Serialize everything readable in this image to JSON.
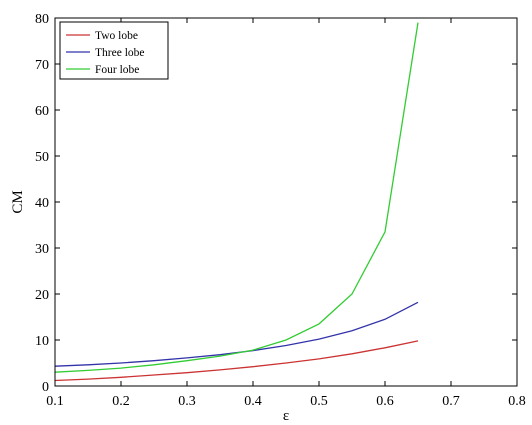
{
  "chart_data": {
    "type": "line",
    "title": "",
    "xlabel": "ε",
    "ylabel": "CM",
    "xlim": [
      0.1,
      0.8
    ],
    "ylim": [
      0,
      80
    ],
    "xticks": [
      "0.1",
      "0.2",
      "0.3",
      "0.4",
      "0.5",
      "0.6",
      "0.7",
      "0.8"
    ],
    "yticks": [
      "0",
      "10",
      "20",
      "30",
      "40",
      "50",
      "60",
      "70",
      "80"
    ],
    "grid": false,
    "legend_position": "top-left",
    "x": [
      0.1,
      0.15,
      0.2,
      0.25,
      0.3,
      0.35,
      0.4,
      0.45,
      0.5,
      0.55,
      0.6,
      0.65
    ],
    "series": [
      {
        "name": "Two lobe",
        "color": "#cc3333",
        "values": [
          1.2,
          1.5,
          1.9,
          2.4,
          2.9,
          3.5,
          4.2,
          5.0,
          5.9,
          7.0,
          8.3,
          9.8
        ]
      },
      {
        "name": "Three lobe",
        "color": "#3333aa",
        "values": [
          4.3,
          4.6,
          5.0,
          5.5,
          6.1,
          6.8,
          7.7,
          8.8,
          10.2,
          12.0,
          14.5,
          18.2
        ]
      },
      {
        "name": "Four lobe",
        "color": "#33cc33",
        "values": [
          3.0,
          3.4,
          3.9,
          4.6,
          5.5,
          6.5,
          7.8,
          10.0,
          13.5,
          20.0,
          33.5,
          79.0
        ]
      }
    ]
  }
}
